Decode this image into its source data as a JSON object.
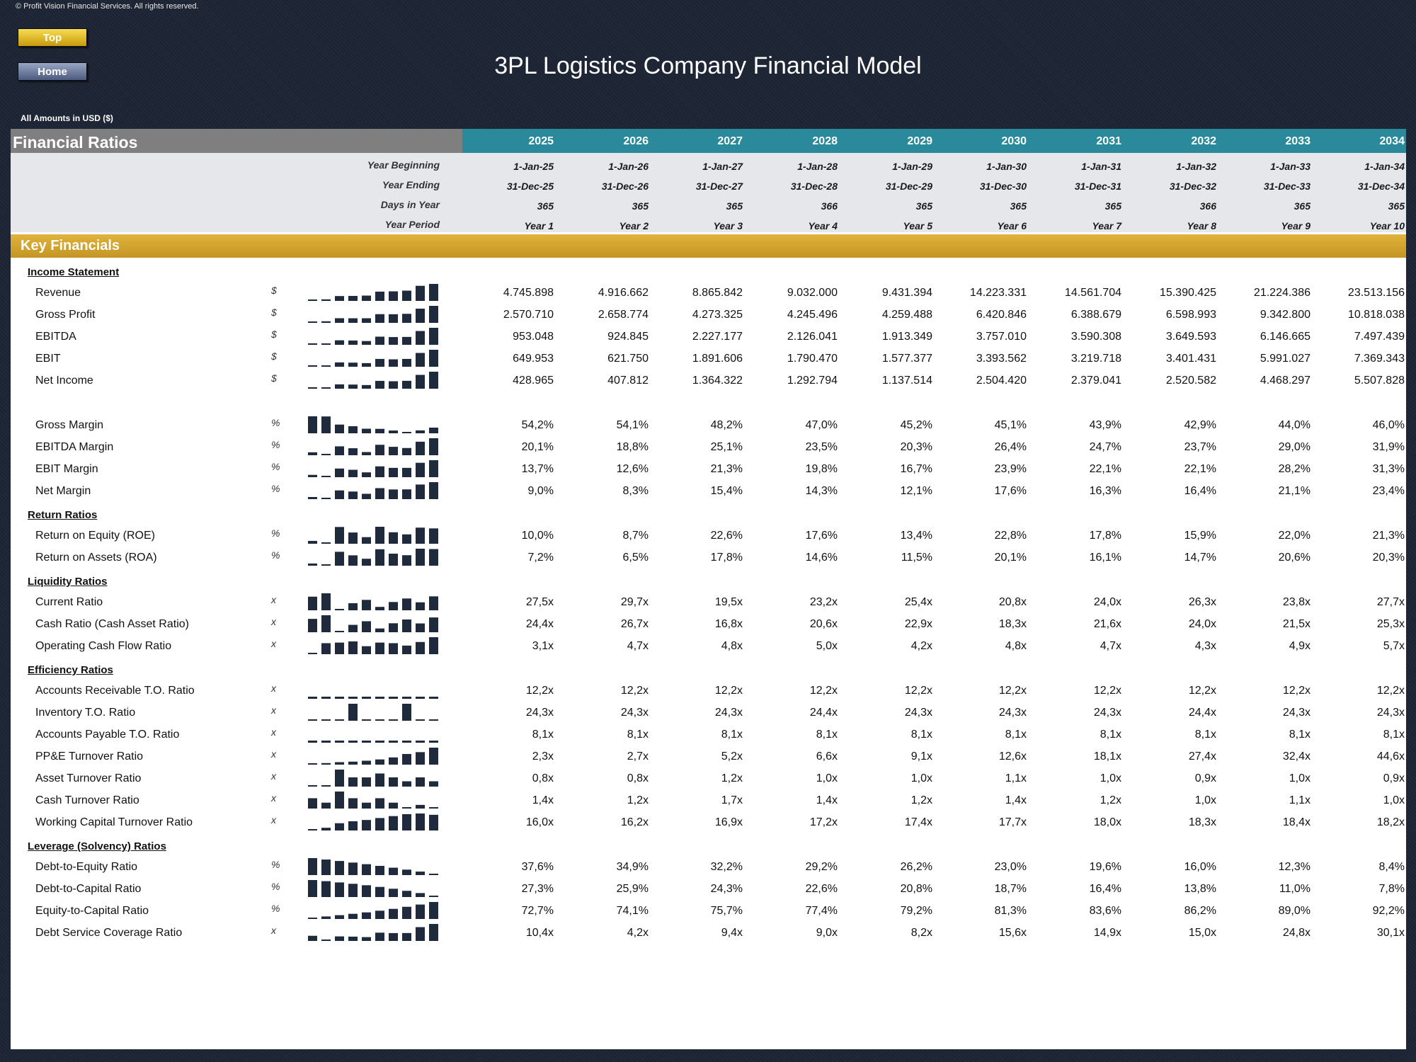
{
  "copyright": "© Profit Vision Financial Services. All rights reserved.",
  "nav": {
    "top_label": "Top",
    "home_label": "Home"
  },
  "title": "3PL Logistics Company Financial Model",
  "amounts_note": "All Amounts in  USD ($)",
  "header": {
    "section_title": "Financial Ratios",
    "years": [
      "2025",
      "2026",
      "2027",
      "2028",
      "2029",
      "2030",
      "2031",
      "2032",
      "2033",
      "2034"
    ]
  },
  "period_rows": [
    {
      "label": "Year Beginning",
      "values": [
        "1-Jan-25",
        "1-Jan-26",
        "1-Jan-27",
        "1-Jan-28",
        "1-Jan-29",
        "1-Jan-30",
        "1-Jan-31",
        "1-Jan-32",
        "1-Jan-33",
        "1-Jan-34"
      ]
    },
    {
      "label": "Year Ending",
      "values": [
        "31-Dec-25",
        "31-Dec-26",
        "31-Dec-27",
        "31-Dec-28",
        "31-Dec-29",
        "31-Dec-30",
        "31-Dec-31",
        "31-Dec-32",
        "31-Dec-33",
        "31-Dec-34"
      ]
    },
    {
      "label": "Days in Year",
      "values": [
        "365",
        "365",
        "365",
        "366",
        "365",
        "365",
        "365",
        "366",
        "365",
        "365"
      ]
    },
    {
      "label": "Year Period",
      "values": [
        "Year 1",
        "Year 2",
        "Year 3",
        "Year 4",
        "Year 5",
        "Year 6",
        "Year 7",
        "Year 8",
        "Year 9",
        "Year 10"
      ]
    }
  ],
  "key_financials_label": "Key Financials",
  "colors": {
    "sparkline": "#1f2a3d",
    "header_teal": "#2a8a9c",
    "key_bar_gold": "#d4a430",
    "header_gray": "#7f7f7f"
  },
  "sections": [
    {
      "title": "Income Statement",
      "rows": [
        {
          "label": "Revenue",
          "unit": "$",
          "values": [
            "4.745.898",
            "4.916.662",
            "8.865.842",
            "9.032.000",
            "9.431.394",
            "14.223.331",
            "14.561.704",
            "15.390.425",
            "21.224.386",
            "23.513.156"
          ]
        },
        {
          "label": "Gross Profit",
          "unit": "$",
          "values": [
            "2.570.710",
            "2.658.774",
            "4.273.325",
            "4.245.496",
            "4.259.488",
            "6.420.846",
            "6.388.679",
            "6.598.993",
            "9.342.800",
            "10.818.038"
          ]
        },
        {
          "label": "EBITDA",
          "unit": "$",
          "values": [
            "953.048",
            "924.845",
            "2.227.177",
            "2.126.041",
            "1.913.349",
            "3.757.010",
            "3.590.308",
            "3.649.593",
            "6.146.665",
            "7.497.439"
          ]
        },
        {
          "label": "EBIT",
          "unit": "$",
          "values": [
            "649.953",
            "621.750",
            "1.891.606",
            "1.790.470",
            "1.577.377",
            "3.393.562",
            "3.219.718",
            "3.401.431",
            "5.991.027",
            "7.369.343"
          ]
        },
        {
          "label": "Net Income",
          "unit": "$",
          "values": [
            "428.965",
            "407.812",
            "1.364.322",
            "1.292.794",
            "1.137.514",
            "2.504.420",
            "2.379.041",
            "2.520.582",
            "4.468.297",
            "5.507.828"
          ]
        }
      ]
    },
    {
      "title": "",
      "rows": [
        {
          "label": "Gross Margin",
          "unit": "%",
          "values": [
            "54,2%",
            "54,1%",
            "48,2%",
            "47,0%",
            "45,2%",
            "45,1%",
            "43,9%",
            "42,9%",
            "44,0%",
            "46,0%"
          ]
        },
        {
          "label": "EBITDA Margin",
          "unit": "%",
          "values": [
            "20,1%",
            "18,8%",
            "25,1%",
            "23,5%",
            "20,3%",
            "26,4%",
            "24,7%",
            "23,7%",
            "29,0%",
            "31,9%"
          ]
        },
        {
          "label": "EBIT Margin",
          "unit": "%",
          "values": [
            "13,7%",
            "12,6%",
            "21,3%",
            "19,8%",
            "16,7%",
            "23,9%",
            "22,1%",
            "22,1%",
            "28,2%",
            "31,3%"
          ]
        },
        {
          "label": "Net Margin",
          "unit": "%",
          "values": [
            "9,0%",
            "8,3%",
            "15,4%",
            "14,3%",
            "12,1%",
            "17,6%",
            "16,3%",
            "16,4%",
            "21,1%",
            "23,4%"
          ]
        }
      ]
    },
    {
      "title": "Return Ratios",
      "rows": [
        {
          "label": "Return on Equity (ROE)",
          "unit": "%",
          "values": [
            "10,0%",
            "8,7%",
            "22,6%",
            "17,6%",
            "13,4%",
            "22,8%",
            "17,8%",
            "15,9%",
            "22,0%",
            "21,3%"
          ]
        },
        {
          "label": "Return on Assets (ROA)",
          "unit": "%",
          "values": [
            "7,2%",
            "6,5%",
            "17,8%",
            "14,6%",
            "11,5%",
            "20,1%",
            "16,1%",
            "14,7%",
            "20,6%",
            "20,3%"
          ]
        }
      ]
    },
    {
      "title": "Liquidity Ratios",
      "rows": [
        {
          "label": "Current Ratio",
          "unit": "x",
          "values": [
            "27,5x",
            "29,7x",
            "19,5x",
            "23,2x",
            "25,4x",
            "20,8x",
            "24,0x",
            "26,3x",
            "23,8x",
            "27,7x"
          ]
        },
        {
          "label": "Cash Ratio (Cash Asset Ratio)",
          "unit": "x",
          "values": [
            "24,4x",
            "26,7x",
            "16,8x",
            "20,6x",
            "22,9x",
            "18,3x",
            "21,6x",
            "24,0x",
            "21,5x",
            "25,3x"
          ]
        },
        {
          "label": "Operating Cash Flow Ratio",
          "unit": "x",
          "values": [
            "3,1x",
            "4,7x",
            "4,8x",
            "5,0x",
            "4,2x",
            "4,8x",
            "4,7x",
            "4,3x",
            "4,9x",
            "5,7x"
          ]
        }
      ]
    },
    {
      "title": "Efficiency Ratios",
      "rows": [
        {
          "label": "Accounts Receivable T.O. Ratio",
          "unit": "x",
          "values": [
            "12,2x",
            "12,2x",
            "12,2x",
            "12,2x",
            "12,2x",
            "12,2x",
            "12,2x",
            "12,2x",
            "12,2x",
            "12,2x"
          ]
        },
        {
          "label": "Inventory T.O. Ratio",
          "unit": "x",
          "values": [
            "24,3x",
            "24,3x",
            "24,3x",
            "24,4x",
            "24,3x",
            "24,3x",
            "24,3x",
            "24,4x",
            "24,3x",
            "24,3x"
          ]
        },
        {
          "label": "Accounts Payable T.O. Ratio",
          "unit": "x",
          "values": [
            "8,1x",
            "8,1x",
            "8,1x",
            "8,1x",
            "8,1x",
            "8,1x",
            "8,1x",
            "8,1x",
            "8,1x",
            "8,1x"
          ]
        },
        {
          "label": "PP&E Turnover Ratio",
          "unit": "x",
          "values": [
            "2,3x",
            "2,7x",
            "5,2x",
            "6,6x",
            "9,1x",
            "12,6x",
            "18,1x",
            "27,4x",
            "32,4x",
            "44,6x"
          ]
        },
        {
          "label": "Asset Turnover Ratio",
          "unit": "x",
          "values": [
            "0,8x",
            "0,8x",
            "1,2x",
            "1,0x",
            "1,0x",
            "1,1x",
            "1,0x",
            "0,9x",
            "1,0x",
            "0,9x"
          ]
        },
        {
          "label": "Cash Turnover Ratio",
          "unit": "x",
          "values": [
            "1,4x",
            "1,2x",
            "1,7x",
            "1,4x",
            "1,2x",
            "1,4x",
            "1,2x",
            "1,0x",
            "1,1x",
            "1,0x"
          ]
        },
        {
          "label": "Working Capital Turnover Ratio",
          "unit": "x",
          "values": [
            "16,0x",
            "16,2x",
            "16,9x",
            "17,2x",
            "17,4x",
            "17,7x",
            "18,0x",
            "18,3x",
            "18,4x",
            "18,2x"
          ]
        }
      ]
    },
    {
      "title": "Leverage (Solvency) Ratios",
      "rows": [
        {
          "label": "Debt-to-Equity Ratio",
          "unit": "%",
          "values": [
            "37,6%",
            "34,9%",
            "32,2%",
            "29,2%",
            "26,2%",
            "23,0%",
            "19,6%",
            "16,0%",
            "12,3%",
            "8,4%"
          ]
        },
        {
          "label": "Debt-to-Capital Ratio",
          "unit": "%",
          "values": [
            "27,3%",
            "25,9%",
            "24,3%",
            "22,6%",
            "20,8%",
            "18,7%",
            "16,4%",
            "13,8%",
            "11,0%",
            "7,8%"
          ]
        },
        {
          "label": "Equity-to-Capital Ratio",
          "unit": "%",
          "values": [
            "72,7%",
            "74,1%",
            "75,7%",
            "77,4%",
            "79,2%",
            "81,3%",
            "83,6%",
            "86,2%",
            "89,0%",
            "92,2%"
          ]
        },
        {
          "label": "Debt Service Coverage Ratio",
          "unit": "x",
          "values": [
            "10,4x",
            "4,2x",
            "9,4x",
            "9,0x",
            "8,2x",
            "15,6x",
            "14,9x",
            "15,0x",
            "24,8x",
            "30,1x"
          ]
        }
      ]
    }
  ]
}
